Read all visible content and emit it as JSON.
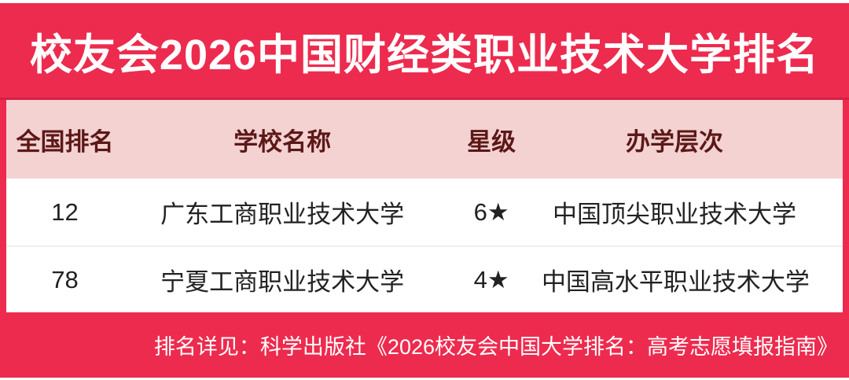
{
  "title": "校友会2026中国财经类职业技术大学排名",
  "table": {
    "headers": [
      "全国排名",
      "学校名称",
      "星级",
      "办学层次"
    ],
    "rows": [
      {
        "rank": "12",
        "school": "广东工商职业技术大学",
        "star": "6★",
        "level": "中国顶尖职业技术大学"
      },
      {
        "rank": "78",
        "school": "宁夏工商职业技术大学",
        "star": "4★",
        "level": "中国高水平职业技术大学"
      }
    ]
  },
  "footer": {
    "note": "排名详见：科学出版社《2026校友会中国大学排名：高考志愿填报指南》"
  },
  "colors": {
    "background_red": "#ED2B4E",
    "header_pink": "#F3D2D1",
    "header_text_maroon": "#5B1817",
    "body_text": "#222222",
    "title_text": "#FFFFFF",
    "row_divider": "#EFEFEF"
  },
  "chart_data": {
    "type": "table",
    "title": "校友会2026中国财经类职业技术大学排名",
    "columns": [
      "全国排名",
      "学校名称",
      "星级",
      "办学层次"
    ],
    "rows": [
      [
        "12",
        "广东工商职业技术大学",
        "6★",
        "中国顶尖职业技术大学"
      ],
      [
        "78",
        "宁夏工商职业技术大学",
        "4★",
        "中国高水平职业技术大学"
      ]
    ],
    "source_note": "排名详见：科学出版社《2026校友会中国大学排名：高考志愿填报指南》"
  }
}
